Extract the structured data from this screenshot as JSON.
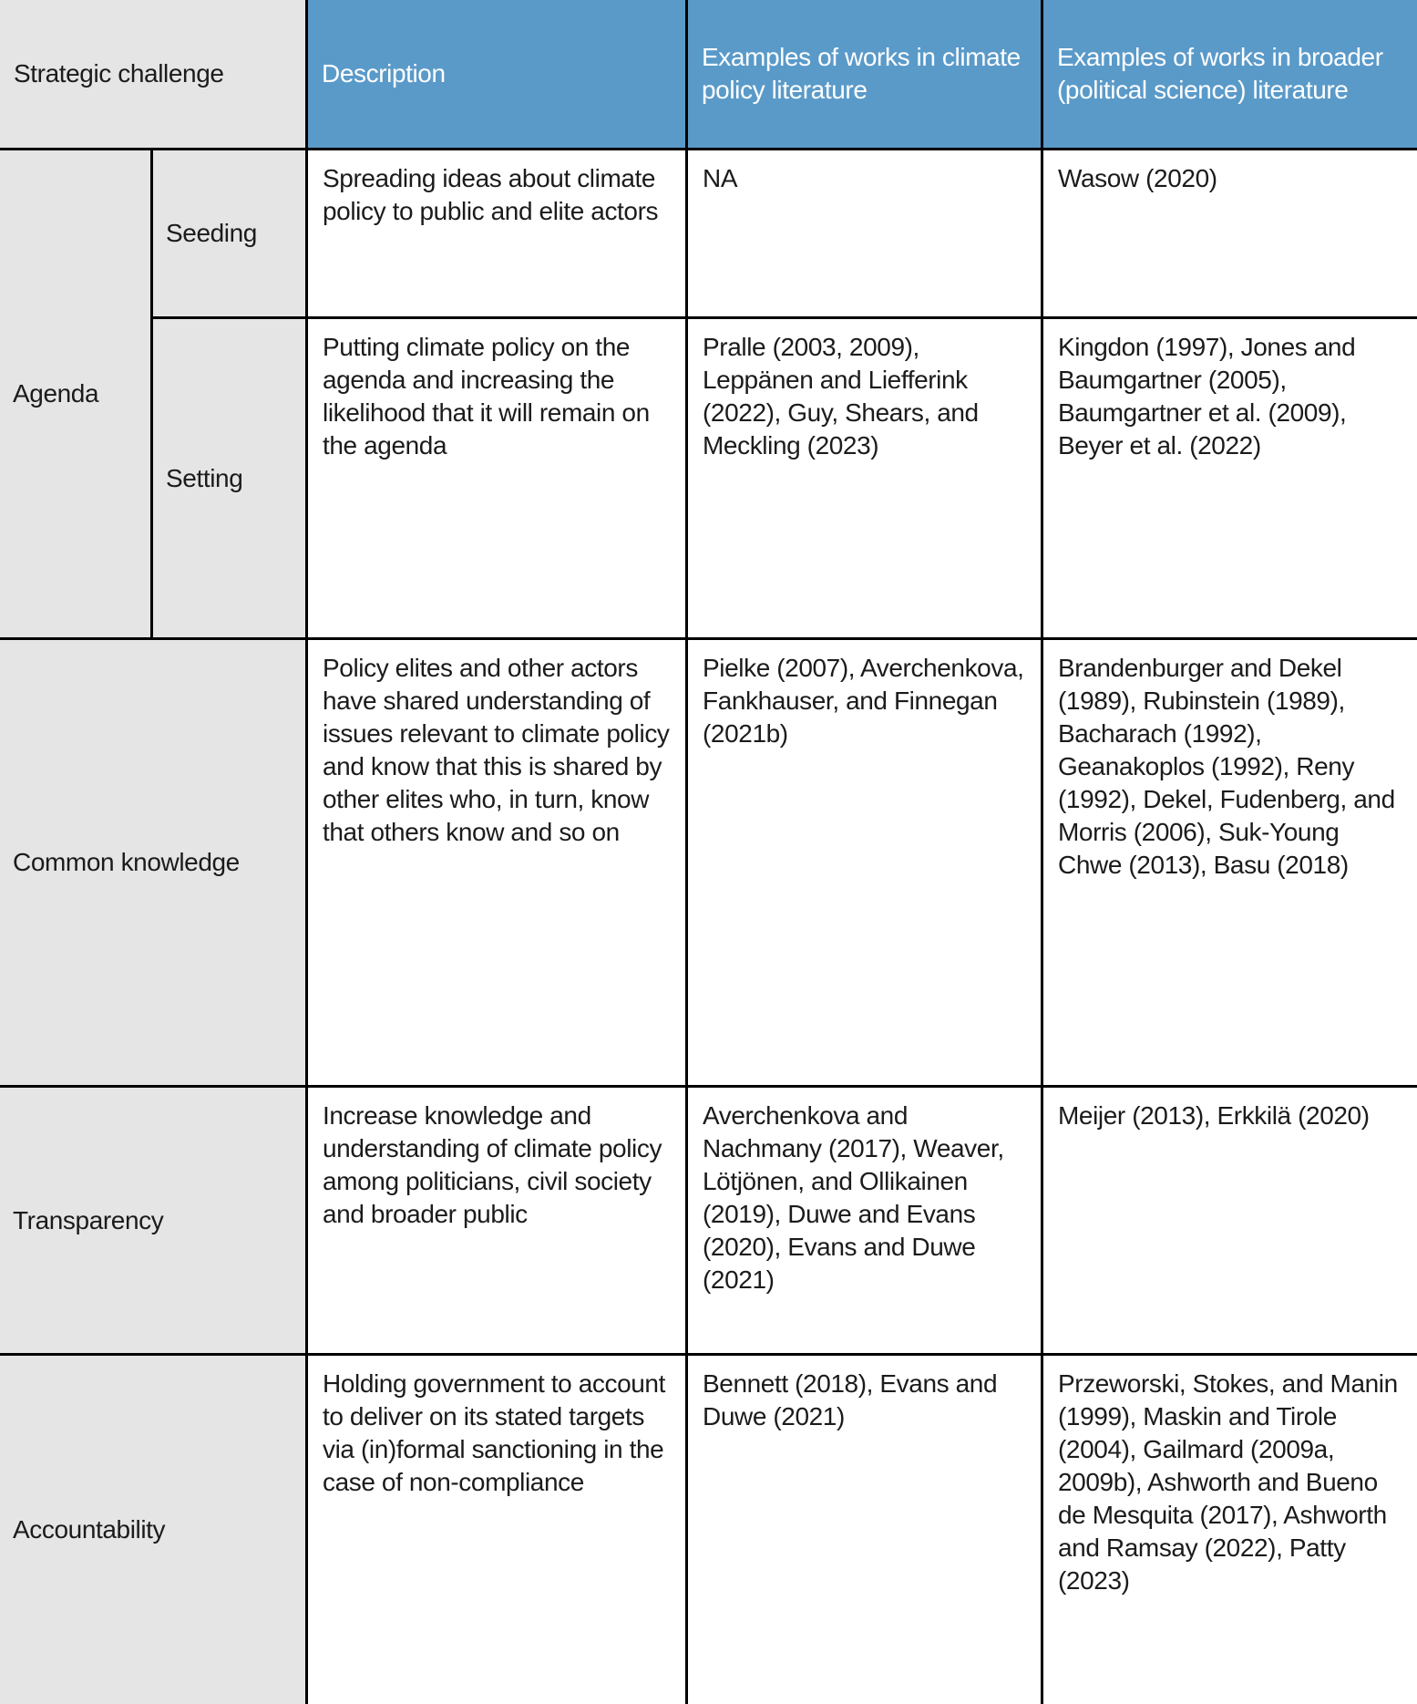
{
  "table": {
    "header": {
      "col1": "Strategic challenge",
      "col2": "Description",
      "col3": "Examples of works in climate policy literature",
      "col4": "Examples of works in broader (political science) literature"
    },
    "groups": [
      {
        "challenge": "Agenda",
        "subrows": [
          {
            "sub": "Seeding",
            "description": "Spreading ideas about climate policy to public and elite actors",
            "climate": "NA",
            "broader": "Wasow (2020)"
          },
          {
            "sub": "Setting",
            "description": "Putting climate policy on the agenda and increasing the likelihood that it will remain on the agenda",
            "climate": "Pralle (2003, 2009), Leppänen and Liefferink (2022), Guy, Shears, and Meckling (2023)",
            "broader": "Kingdon (1997), Jones and Baumgartner (2005), Baumgartner et al. (2009), Beyer et al. (2022)"
          }
        ]
      },
      {
        "challenge": "Common knowledge",
        "description": "Policy elites and other actors have shared understanding of issues relevant to climate policy and know that this is shared by other elites who, in turn, know that others know and so on",
        "climate": "Pielke (2007), Averchenkova, Fankhauser, and Finnegan (2021b)",
        "broader": "Brandenburger and Dekel (1989), Rubinstein (1989), Bacharach (1992), Geanakoplos (1992), Reny (1992), Dekel, Fudenberg, and Morris (2006), Suk-Young Chwe (2013), Basu (2018)"
      },
      {
        "challenge": "Transparency",
        "description": "Increase knowledge and understanding of climate policy among politicians, civil society and broader public",
        "climate": "Averchenkova and Nachmany (2017), Weaver, Lötjönen, and Ollikainen (2019), Duwe and Evans (2020), Evans and Duwe (2021)",
        "broader": "Meijer (2013), Erkkilä (2020)"
      },
      {
        "challenge": "Accountability",
        "description": "Holding government to account to deliver on its stated targets via (in)formal sanctioning in the case of non-compliance",
        "climate": "Bennett (2018), Evans and Duwe (2021)",
        "broader": "Przeworski, Stokes, and Manin (1999), Maskin and Tirole (2004), Gailmard (2009a, 2009b), Ashworth and Bueno de Mesquita (2017), Ashworth and Ramsay (2022), Patty (2023)"
      }
    ]
  },
  "colors": {
    "header_blue": "#5a9ac9",
    "row_label_gray": "#e5e5e6",
    "border_black": "#000000",
    "header_text": "#ffffff",
    "body_text": "#1b1b1b"
  }
}
